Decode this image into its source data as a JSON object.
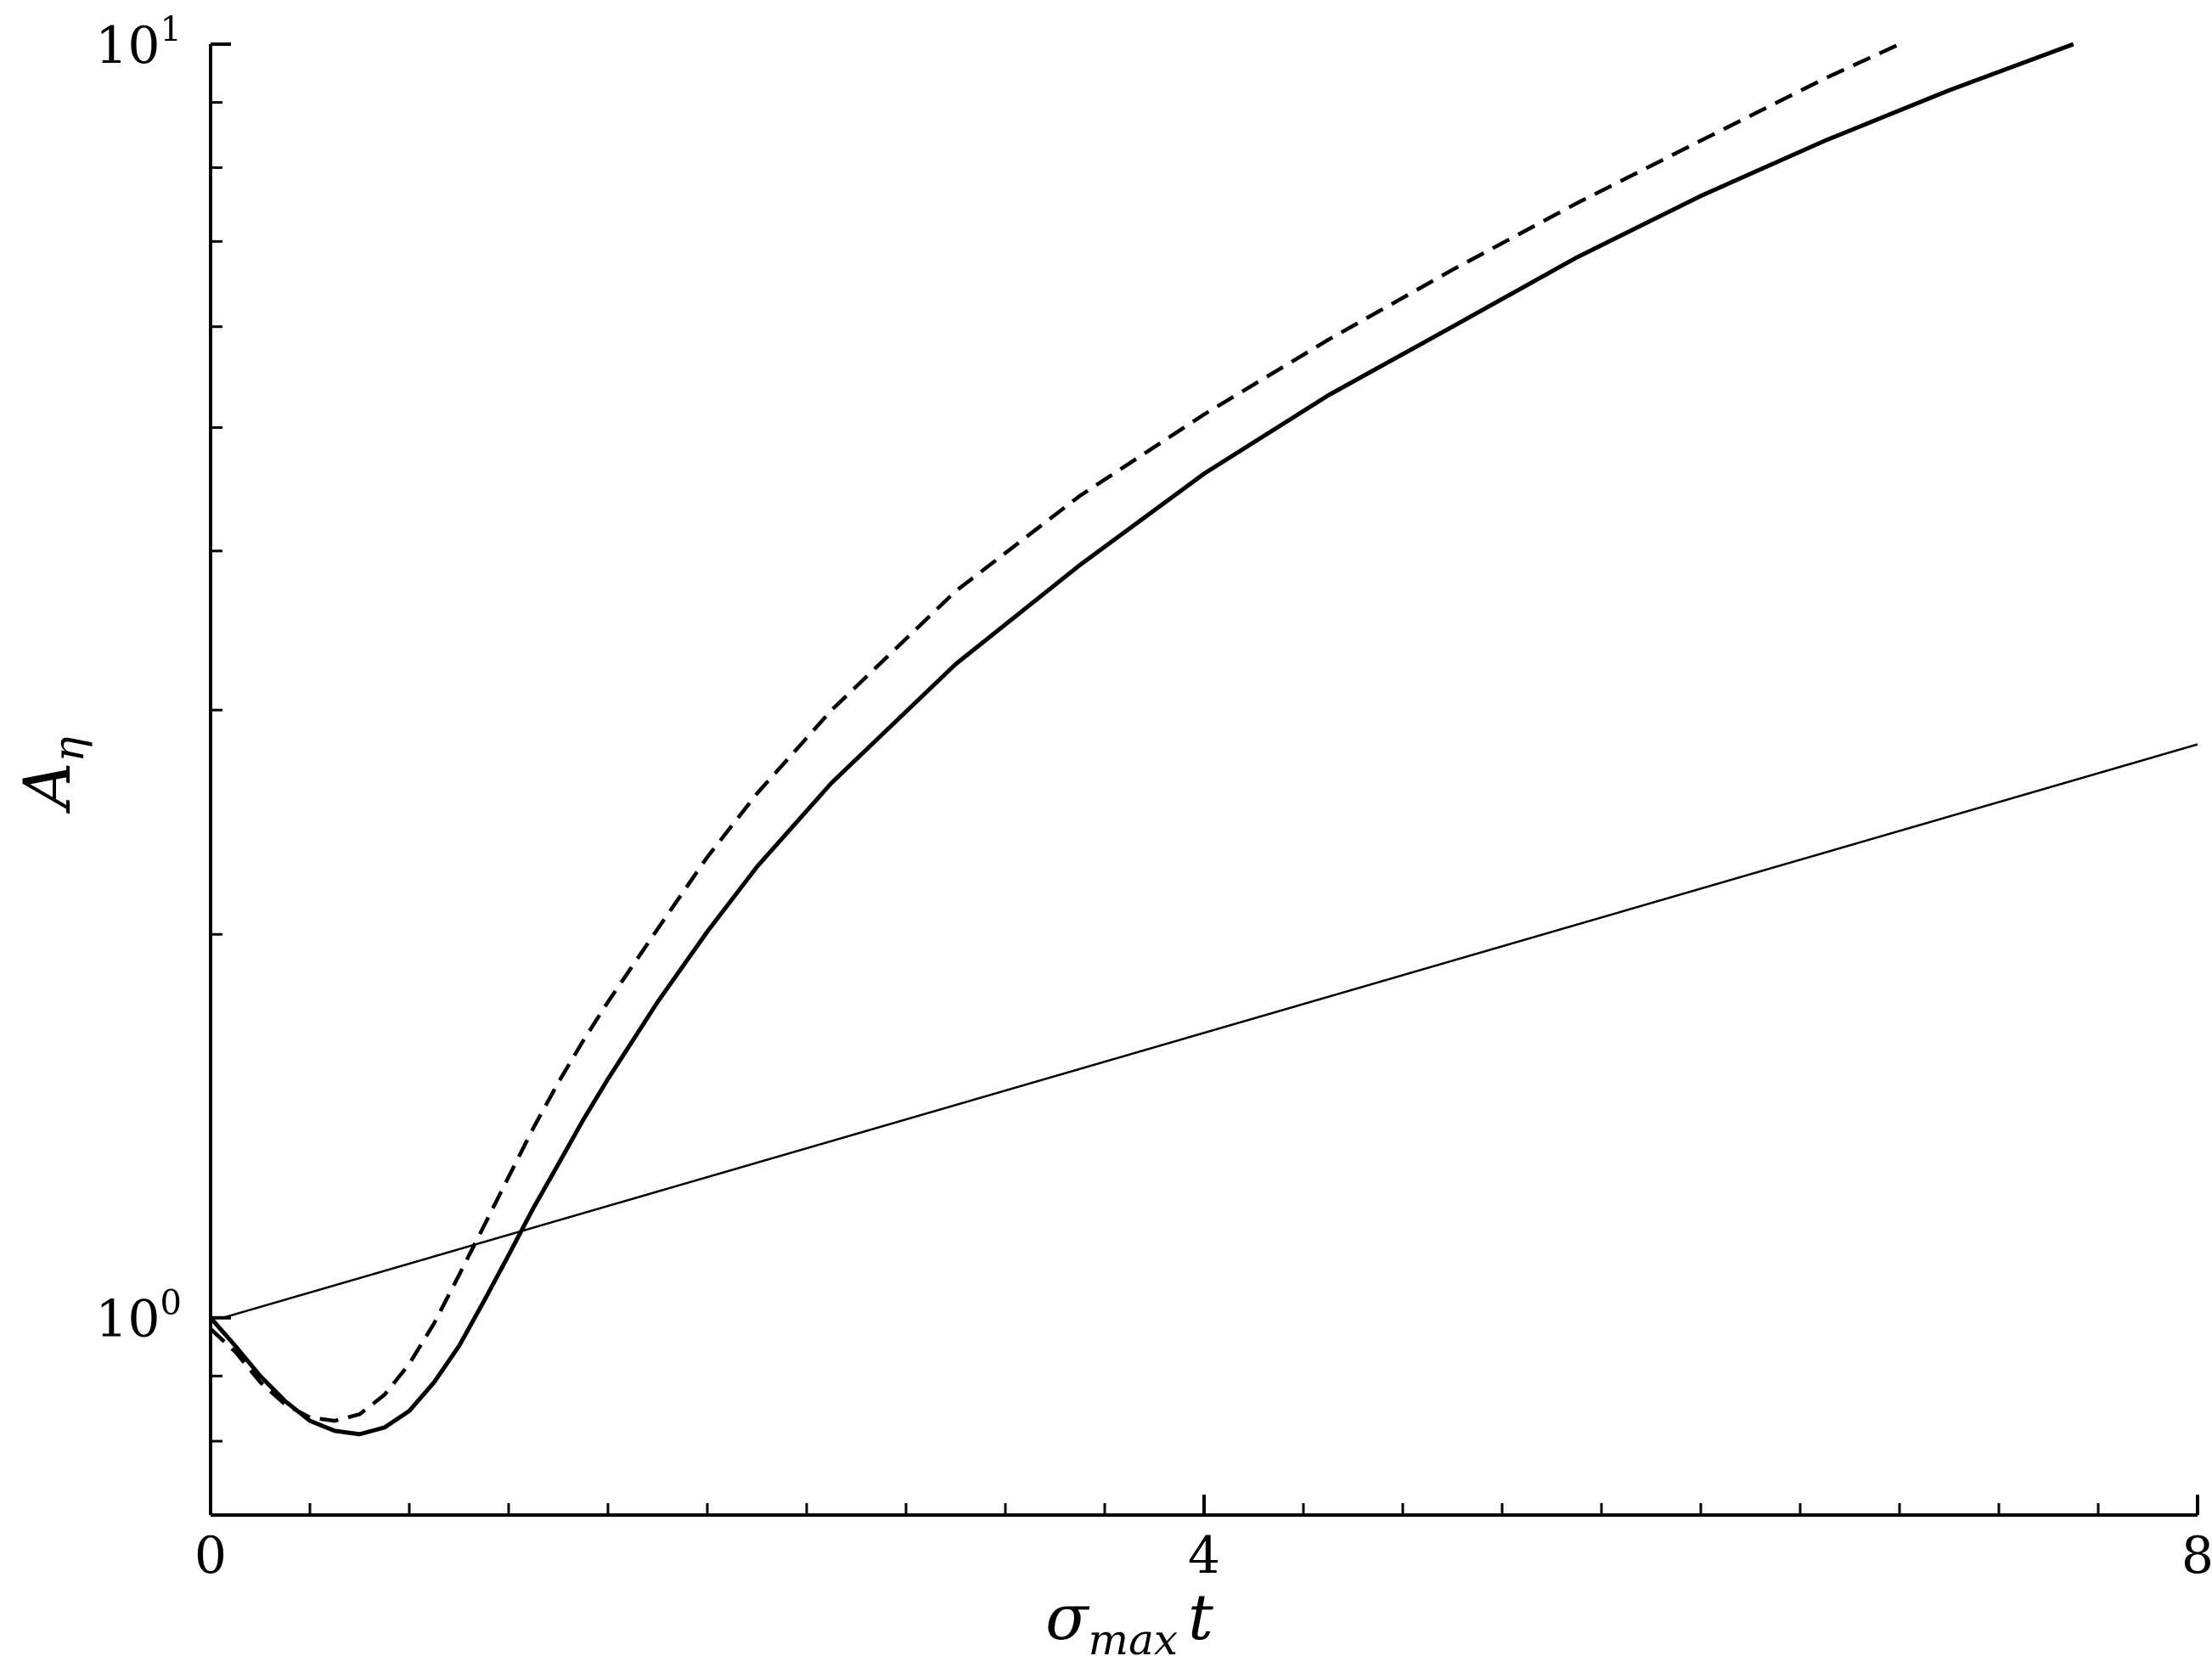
{
  "chart_data": {
    "type": "line",
    "title": "",
    "xlabel": {
      "base": "σ",
      "sub": "max",
      "tail": "t"
    },
    "ylabel": {
      "base": "A",
      "sub": "η"
    },
    "xlim": [
      0,
      8
    ],
    "ylim": [
      0.7,
      10
    ],
    "yscale": "log",
    "grid": false,
    "legend": "none",
    "x_ticks": [
      {
        "value": 0,
        "label": "0"
      },
      {
        "value": 4,
        "label": "4"
      },
      {
        "value": 8,
        "label": "8"
      }
    ],
    "x_minor_ticks": [
      0.4,
      0.8,
      1.2,
      1.6,
      2.0,
      2.4,
      2.8,
      3.2,
      3.6,
      4.4,
      4.8,
      5.2,
      5.6,
      6.0,
      6.4,
      6.8,
      7.2,
      7.6
    ],
    "y_ticks": [
      {
        "value": 1,
        "base": "10",
        "exp": "0"
      },
      {
        "value": 10,
        "base": "10",
        "exp": "1"
      }
    ],
    "y_minor_ticks": [
      0.8,
      0.9,
      2,
      3,
      4,
      5,
      6,
      7,
      8,
      9
    ],
    "series": [
      {
        "style": "solid-thick",
        "color": "#000000",
        "x": [
          0.0,
          0.1,
          0.2,
          0.3,
          0.4,
          0.5,
          0.6,
          0.7,
          0.8,
          0.9,
          1.0,
          1.1,
          1.2,
          1.3,
          1.4,
          1.5,
          1.6,
          1.8,
          2.0,
          2.2,
          2.5,
          3.0,
          3.5,
          4.0,
          4.5,
          5.0,
          5.5,
          6.0,
          6.5,
          7.0,
          7.5
        ],
        "y": [
          1.0,
          0.95,
          0.9,
          0.86,
          0.83,
          0.815,
          0.81,
          0.82,
          0.845,
          0.89,
          0.95,
          1.03,
          1.12,
          1.22,
          1.32,
          1.43,
          1.54,
          1.77,
          2.01,
          2.26,
          2.63,
          3.26,
          3.9,
          4.6,
          5.3,
          6.0,
          6.8,
          7.6,
          8.4,
          9.2,
          10.0
        ]
      },
      {
        "style": "dashed",
        "color": "#000000",
        "x": [
          0.0,
          0.1,
          0.2,
          0.3,
          0.4,
          0.5,
          0.6,
          0.7,
          0.8,
          0.9,
          1.0,
          1.1,
          1.2,
          1.3,
          1.4,
          1.5,
          1.6,
          1.8,
          2.0,
          2.2,
          2.5,
          3.0,
          3.5,
          4.0,
          4.5,
          5.0,
          5.5,
          6.0,
          6.5,
          6.8
        ],
        "y": [
          0.98,
          0.94,
          0.89,
          0.855,
          0.835,
          0.83,
          0.84,
          0.87,
          0.92,
          0.99,
          1.08,
          1.18,
          1.29,
          1.41,
          1.53,
          1.65,
          1.77,
          2.02,
          2.3,
          2.58,
          3.0,
          3.72,
          4.42,
          5.12,
          5.86,
          6.65,
          7.5,
          8.4,
          9.4,
          10.0
        ]
      },
      {
        "style": "solid-thin",
        "color": "#000000",
        "x": [
          0.05,
          8.0
        ],
        "y": [
          1.0,
          2.82
        ]
      }
    ]
  }
}
